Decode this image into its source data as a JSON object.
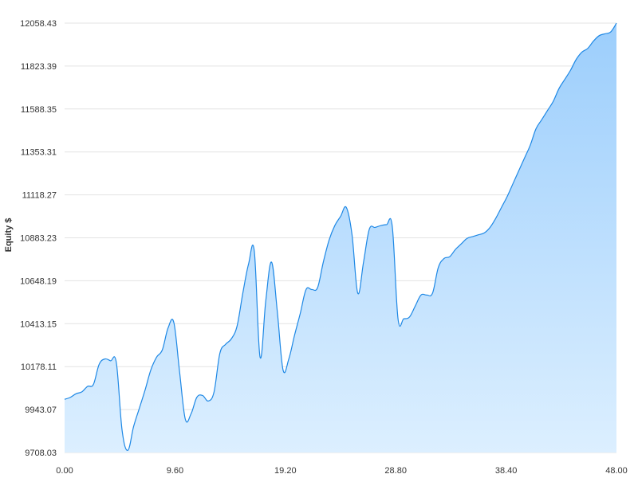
{
  "chart_data": {
    "type": "area",
    "title": "",
    "xlabel": "",
    "ylabel": "Equity $",
    "xlim": [
      0,
      48
    ],
    "ylim": [
      9708.03,
      12058.43
    ],
    "grid": true,
    "x_ticks": [
      "0.00",
      "9.60",
      "19.20",
      "28.80",
      "38.40",
      "48.00"
    ],
    "y_ticks": [
      "9708.03",
      "9943.07",
      "10178.11",
      "10413.15",
      "10648.19",
      "10883.23",
      "11118.27",
      "11353.31",
      "11588.35",
      "11823.39",
      "12058.43"
    ],
    "series": [
      {
        "color": "#1e88e5",
        "fill_top": "#9ccefc",
        "fill_bottom": "#dcefff",
        "x": [
          0.0,
          0.5,
          1.0,
          1.5,
          2.0,
          2.5,
          3.0,
          3.5,
          4.0,
          4.5,
          5.0,
          5.5,
          6.0,
          6.5,
          7.0,
          7.5,
          8.0,
          8.5,
          9.0,
          9.5,
          10.0,
          10.5,
          11.0,
          11.5,
          12.0,
          12.5,
          13.0,
          13.5,
          14.0,
          14.5,
          15.0,
          15.5,
          16.0,
          16.5,
          17.0,
          17.5,
          18.0,
          18.5,
          19.0,
          19.5,
          20.0,
          20.5,
          21.0,
          21.5,
          22.0,
          22.5,
          23.0,
          23.5,
          24.0,
          24.5,
          25.0,
          25.5,
          26.0,
          26.5,
          27.0,
          27.5,
          28.0,
          28.5,
          29.0,
          29.5,
          30.0,
          30.5,
          31.0,
          31.5,
          32.0,
          32.5,
          33.0,
          33.5,
          34.0,
          34.5,
          35.0,
          35.5,
          36.0,
          36.5,
          37.0,
          37.5,
          38.0,
          38.5,
          39.0,
          39.5,
          40.0,
          40.5,
          41.0,
          41.5,
          42.0,
          42.5,
          43.0,
          43.5,
          44.0,
          44.5,
          45.0,
          45.5,
          46.0,
          46.5,
          47.0,
          47.5,
          48.0
        ],
        "values": [
          9999,
          10010,
          10030,
          10040,
          10070,
          10080,
          10190,
          10220,
          10210,
          10200,
          9830,
          9720,
          9850,
          9950,
          10050,
          10160,
          10230,
          10270,
          10390,
          10420,
          10150,
          9890,
          9920,
          10010,
          10020,
          9990,
          10040,
          10250,
          10300,
          10330,
          10400,
          10580,
          10740,
          10810,
          10230,
          10540,
          10750,
          10480,
          10160,
          10220,
          10350,
          10470,
          10600,
          10600,
          10610,
          10750,
          10870,
          10950,
          11000,
          11050,
          10900,
          10580,
          10750,
          10930,
          10940,
          10950,
          10955,
          10945,
          10440,
          10440,
          10450,
          10510,
          10570,
          10570,
          10580,
          10720,
          10770,
          10780,
          10820,
          10850,
          10880,
          10890,
          10900,
          10910,
          10940,
          10990,
          11050,
          11110,
          11180,
          11250,
          11320,
          11390,
          11480,
          11530,
          11580,
          11630,
          11700,
          11750,
          11800,
          11860,
          11900,
          11920,
          11960,
          11990,
          12000,
          12010,
          12058
        ]
      }
    ]
  }
}
